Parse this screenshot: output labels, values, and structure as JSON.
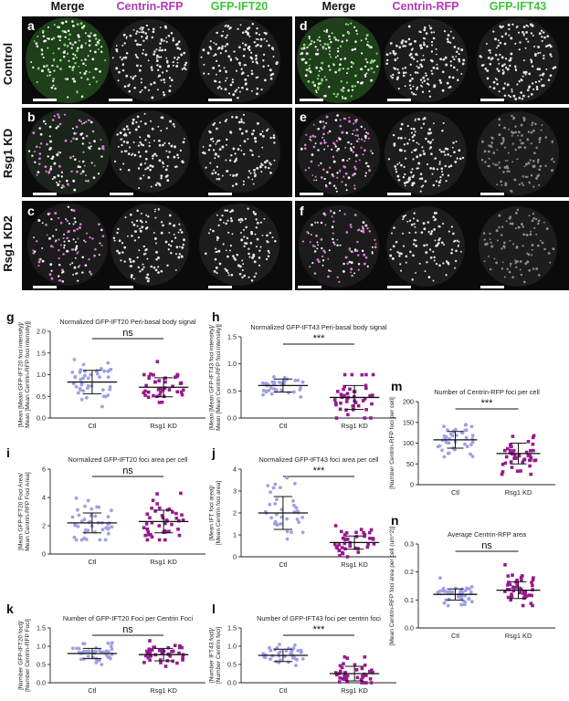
{
  "columns": [
    "Merge",
    "Centrin-RFP",
    "GFP-IFT20",
    "Merge",
    "Centrin-RFP",
    "GFP-IFT43"
  ],
  "rows": [
    "Control",
    "Rsg1 KD",
    "Rsg1 KD2"
  ],
  "panel_letters": [
    "a",
    "b",
    "c",
    "d",
    "e",
    "f"
  ],
  "colors": {
    "magenta": "#b13ab4",
    "green": "#3ec43e",
    "ctl": "#9f9fe6",
    "kd": "#97198f"
  },
  "chart_data": [
    {
      "id": "g",
      "type": "scatter",
      "title": "Normalized GFP-IFT20 Peri-basal body signal",
      "ylabel_lines": [
        "[Mean [Mean GFP-IFT20 foci intensity]/",
        "Mean [Mean Centrin-RFP foci intensity]]"
      ],
      "ylim": [
        0,
        2.0
      ],
      "yticks": [
        0.0,
        0.5,
        1.0,
        1.5,
        2.0
      ],
      "ytick_labels": [
        "0.0",
        "0.5",
        "1.0",
        "1.5",
        "2.0"
      ],
      "categories": [
        "Ctl",
        "Rsg1 KD"
      ],
      "significance": "ns",
      "groups": [
        {
          "center": 0.83,
          "sd": 0.27,
          "spread": 0.25,
          "lo": 0.2,
          "hi": 1.4,
          "n": 44
        },
        {
          "center": 0.71,
          "sd": 0.22,
          "spread": 0.2,
          "lo": 0.2,
          "hi": 1.3,
          "n": 40
        }
      ]
    },
    {
      "id": "h",
      "type": "scatter",
      "title": "Normalized GFP-IFT43 Peri-basal body signal",
      "ylabel_lines": [
        "[Mean [Mean GFP-IFT43 foci intensity]/",
        "Mean [Mean Centrin-RFP foci intensity]]"
      ],
      "ylim": [
        0,
        1.5
      ],
      "yticks": [
        0.0,
        0.5,
        1.0,
        1.5
      ],
      "ytick_labels": [
        "0.0",
        "0.5",
        "1.0",
        "1.5"
      ],
      "categories": [
        "Ctl",
        "Rsg1 KD"
      ],
      "significance": "***",
      "groups": [
        {
          "center": 0.6,
          "sd": 0.12,
          "spread": 0.12,
          "lo": 0.3,
          "hi": 1.0,
          "n": 36
        },
        {
          "center": 0.38,
          "sd": 0.22,
          "spread": 0.22,
          "lo": 0.0,
          "hi": 0.8,
          "n": 42
        }
      ]
    },
    {
      "id": "i",
      "type": "scatter",
      "title": "Normalized GFP-IFT20 foci area per cell",
      "ylabel_lines": [
        "[Mean GFP-IFT20 Foci Area/",
        "Mean Centrin-RFP Foci Area]"
      ],
      "ylim": [
        0,
        6
      ],
      "yticks": [
        0,
        2,
        4,
        6
      ],
      "ytick_labels": [
        "0",
        "2",
        "4",
        "6"
      ],
      "categories": [
        "Ctl",
        "Rsg1 KD"
      ],
      "significance": "ns",
      "groups": [
        {
          "center": 2.2,
          "sd": 0.7,
          "spread": 0.7,
          "lo": 1.0,
          "hi": 4.0,
          "n": 44
        },
        {
          "center": 2.3,
          "sd": 0.8,
          "spread": 0.8,
          "lo": 1.0,
          "hi": 4.3,
          "n": 42
        }
      ]
    },
    {
      "id": "j",
      "type": "scatter",
      "title": "Normalized GFP-IFT43 foci area per cell",
      "ylabel_lines": [
        "[Mean IFT foci area]/",
        "[Mean Centrin foci area]"
      ],
      "ylim": [
        0,
        4
      ],
      "yticks": [
        0,
        1,
        2,
        3,
        4
      ],
      "ytick_labels": [
        "0",
        "1",
        "2",
        "3",
        "4"
      ],
      "categories": [
        "Ctl",
        "Rsg1 KD"
      ],
      "significance": "***",
      "groups": [
        {
          "center": 2.0,
          "sd": 0.75,
          "spread": 0.75,
          "lo": 0.5,
          "hi": 3.6,
          "n": 36
        },
        {
          "center": 0.65,
          "sd": 0.3,
          "spread": 0.35,
          "lo": 0.0,
          "hi": 1.6,
          "n": 42
        }
      ]
    },
    {
      "id": "k",
      "type": "scatter",
      "title": "Number of GFP-IFT20 Foci per Centrin Foci",
      "ylabel_lines": [
        "[Number GFP-IFT20 foci]/",
        "[Number Centrin-RFP Foci]"
      ],
      "ylim": [
        0,
        1.5
      ],
      "yticks": [
        0.0,
        0.5,
        1.0,
        1.5
      ],
      "ytick_labels": [
        "0.0",
        "0.5",
        "1.0",
        "1.5"
      ],
      "categories": [
        "Ctl",
        "Rsg1 KD"
      ],
      "significance": "ns",
      "groups": [
        {
          "center": 0.8,
          "sd": 0.14,
          "spread": 0.15,
          "lo": 0.5,
          "hi": 1.1,
          "n": 44
        },
        {
          "center": 0.77,
          "sd": 0.17,
          "spread": 0.17,
          "lo": 0.45,
          "hi": 1.15,
          "n": 42
        }
      ]
    },
    {
      "id": "l",
      "type": "scatter",
      "title": "Number of GFP-IFT43 foci per centrin foci",
      "ylabel_lines": [
        "[Number IFT43 foci]/",
        "[Number Centrin foci]"
      ],
      "ylim": [
        0,
        1.5
      ],
      "yticks": [
        0.0,
        0.5,
        1.0,
        1.5
      ],
      "ytick_labels": [
        "0.0",
        "0.5",
        "1.0",
        "1.5"
      ],
      "categories": [
        "Ctl",
        "Rsg1 KD"
      ],
      "significance": "***",
      "groups": [
        {
          "center": 0.75,
          "sd": 0.17,
          "spread": 0.16,
          "lo": 0.45,
          "hi": 1.05,
          "n": 40
        },
        {
          "center": 0.25,
          "sd": 0.2,
          "spread": 0.2,
          "lo": 0.0,
          "hi": 0.8,
          "n": 40
        }
      ]
    },
    {
      "id": "m",
      "type": "scatter",
      "title": "Number of Centrin-RFP foci per cell",
      "ylabel_lines": [
        "[Number Centrin-RFP foci per cell]"
      ],
      "ylim": [
        0,
        200
      ],
      "yticks": [
        0,
        50,
        100,
        150,
        200
      ],
      "ytick_labels": [
        "0",
        "50",
        "100",
        "150",
        "200"
      ],
      "categories": [
        "Ctl",
        "Rsg1 KD"
      ],
      "significance": "***",
      "groups": [
        {
          "center": 108,
          "sd": 20,
          "spread": 20,
          "lo": 65,
          "hi": 160,
          "n": 44
        },
        {
          "center": 75,
          "sd": 25,
          "spread": 25,
          "lo": 25,
          "hi": 140,
          "n": 44
        }
      ]
    },
    {
      "id": "n",
      "type": "scatter",
      "title": "Average Centrin-RFP area",
      "ylabel_lines": [
        "[Mean Centrin-RFP foci area per cell (um^2)]"
      ],
      "ylim": [
        0,
        0.3
      ],
      "yticks": [
        0.0,
        0.1,
        0.2,
        0.3
      ],
      "ytick_labels": [
        "0.0",
        "0.1",
        "0.2",
        "0.3"
      ],
      "categories": [
        "Ctl",
        "Rsg1 KD"
      ],
      "significance": "ns",
      "groups": [
        {
          "center": 0.12,
          "sd": 0.02,
          "spread": 0.02,
          "lo": 0.08,
          "hi": 0.18,
          "n": 44
        },
        {
          "center": 0.135,
          "sd": 0.03,
          "spread": 0.03,
          "lo": 0.08,
          "hi": 0.25,
          "n": 44
        }
      ]
    }
  ]
}
